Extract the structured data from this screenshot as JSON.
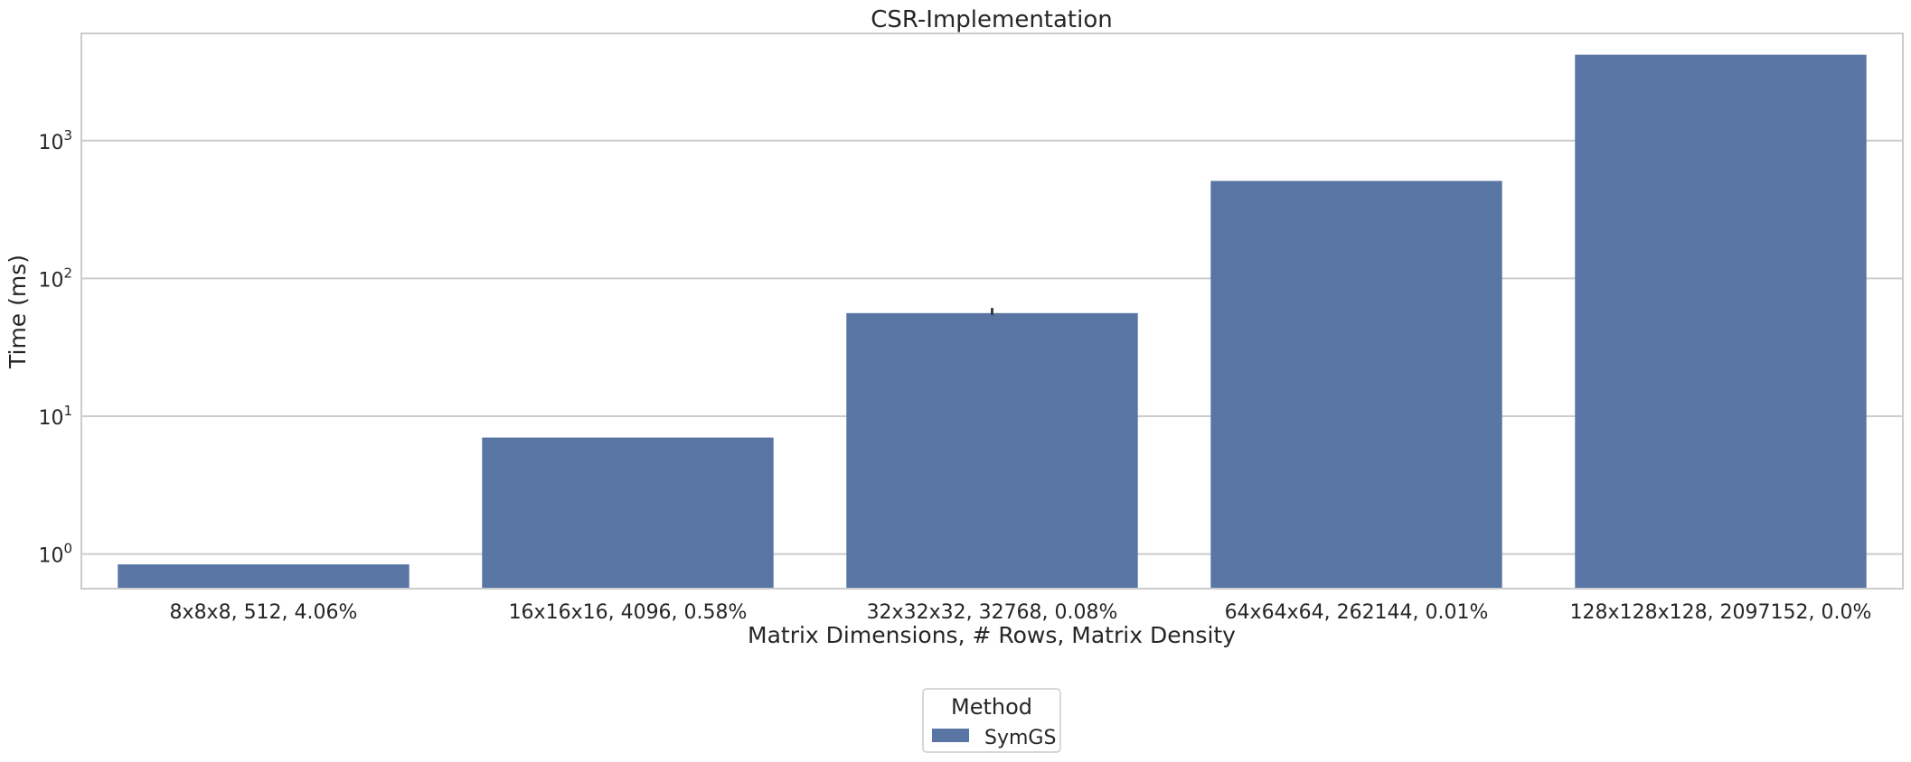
{
  "chart_data": {
    "type": "bar",
    "title": "CSR-Implementation",
    "xlabel": "Matrix Dimensions, # Rows, Matrix Density",
    "ylabel": "Time (ms)",
    "yscale": "log",
    "ylim": [
      0.56,
      6000
    ],
    "grid": true,
    "categories": [
      "8x8x8, 512, 4.06%",
      "16x16x16, 4096, 0.58%",
      "32x32x32, 32768, 0.08%",
      "64x64x64, 262144, 0.01%",
      "128x128x128, 2097152, 0.0%"
    ],
    "yticks": [
      {
        "base": "10",
        "exp": "0",
        "value": 1
      },
      {
        "base": "10",
        "exp": "1",
        "value": 10
      },
      {
        "base": "10",
        "exp": "2",
        "value": 100
      },
      {
        "base": "10",
        "exp": "3",
        "value": 1000
      }
    ],
    "series": [
      {
        "name": "SymGS",
        "color": "#5875a4",
        "values": [
          0.84,
          7.0,
          56,
          510,
          4200
        ],
        "error": [
          null,
          null,
          [
            54,
            61
          ],
          null,
          null
        ]
      }
    ],
    "legend": {
      "title": "Method",
      "placement": "bottom-center"
    }
  }
}
